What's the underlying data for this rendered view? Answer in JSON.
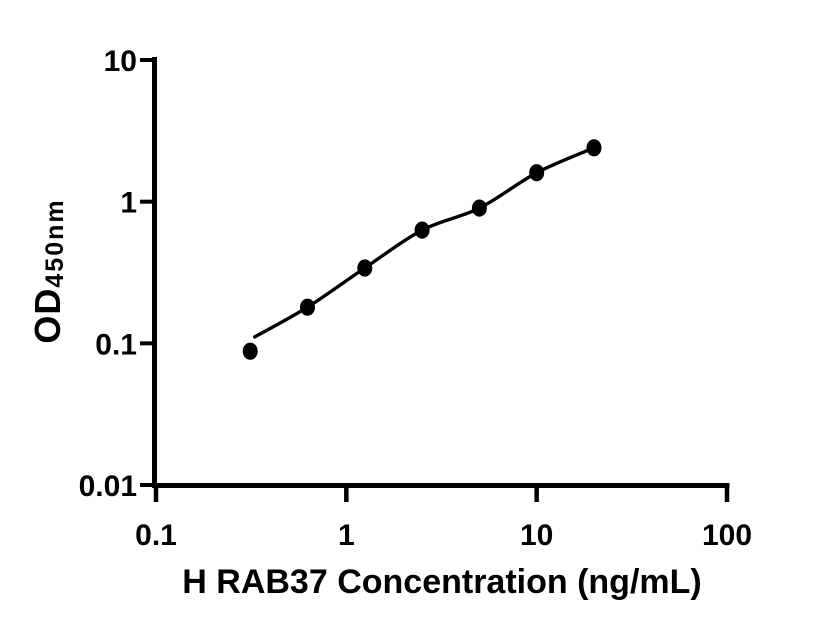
{
  "figure": {
    "background_color": "#ffffff",
    "foreground_color": "#000000"
  },
  "chart_data": {
    "type": "scatter",
    "title": "",
    "xlabel": "H RAB37 Concentration (ng/mL)",
    "ylabel": "OD450nm",
    "ylabel_main": "OD",
    "ylabel_sub": "450nm",
    "x_scale": "log",
    "y_scale": "log",
    "xlim": [
      0.1,
      100
    ],
    "ylim": [
      0.01,
      10
    ],
    "x_ticks": [
      0.1,
      1,
      10,
      100
    ],
    "x_tick_labels": [
      "0.1",
      "1",
      "10",
      "100"
    ],
    "y_ticks": [
      0.01,
      0.1,
      1,
      10
    ],
    "y_tick_labels": [
      "0.01",
      "0.1",
      "1",
      "10"
    ],
    "grid": false,
    "legend": null,
    "marker_color": "#000000",
    "line_color": "#000000",
    "series": [
      {
        "marker": "filled-circle",
        "x": [
          0.3125,
          0.625,
          1.25,
          2.5,
          5,
          10,
          20
        ],
        "y": [
          0.088,
          0.18,
          0.34,
          0.63,
          0.9,
          1.6,
          2.4
        ]
      }
    ],
    "fit_curve": {
      "vertices_x": [
        0.33,
        0.625,
        1.25,
        2.5,
        5,
        10,
        20
      ],
      "vertices_y": [
        0.111,
        0.18,
        0.34,
        0.63,
        0.9,
        1.6,
        2.4
      ]
    }
  }
}
